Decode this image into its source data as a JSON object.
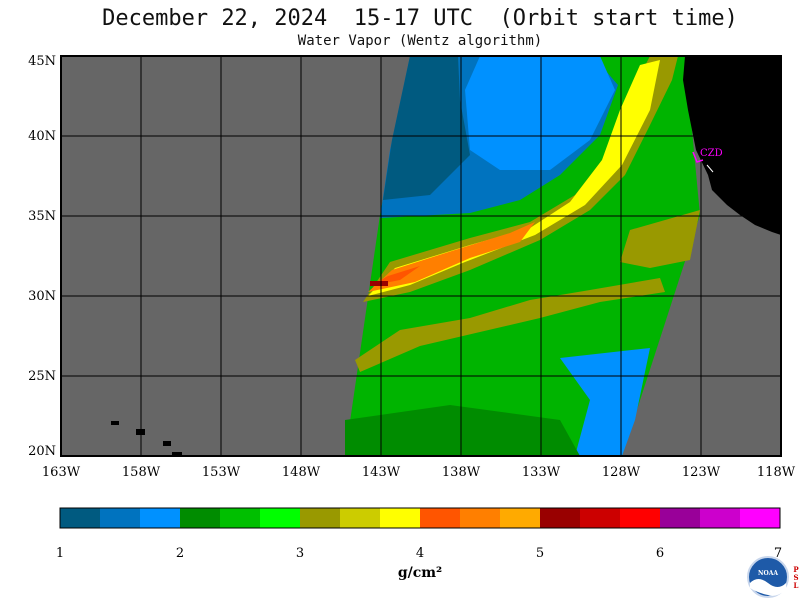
{
  "header": {
    "title": "December 22, 2024  15-17 UTC  (Orbit start time)",
    "subtitle": "Water Vapor (Wentz algorithm)"
  },
  "map": {
    "lat_labels": [
      "45N",
      "40N",
      "35N",
      "30N",
      "25N",
      "20N"
    ],
    "lon_labels": [
      "163W",
      "158W",
      "153W",
      "148W",
      "143W",
      "138W",
      "133W",
      "128W",
      "123W",
      "118W"
    ],
    "station_label": "CZD",
    "colors": {
      "no_data": "#666666",
      "land": "#000000",
      "grid": "#000000",
      "station": "#ff00ff"
    }
  },
  "colorbar": {
    "colors": [
      "#005a80",
      "#0073bf",
      "#0091ff",
      "#008c00",
      "#00bf00",
      "#00ff00",
      "#999900",
      "#cccc00",
      "#ffff00",
      "#ff5500",
      "#ff7f00",
      "#ffaa00",
      "#990000",
      "#cc0000",
      "#ff0000",
      "#990099",
      "#cc00cc",
      "#ff00ff"
    ],
    "tick_labels": [
      "1",
      "2",
      "3",
      "4",
      "5",
      "6",
      "7"
    ],
    "unit": "g/cm²"
  },
  "logo": {
    "text": "NOAA",
    "side_letters": [
      "P",
      "S",
      "L"
    ]
  }
}
